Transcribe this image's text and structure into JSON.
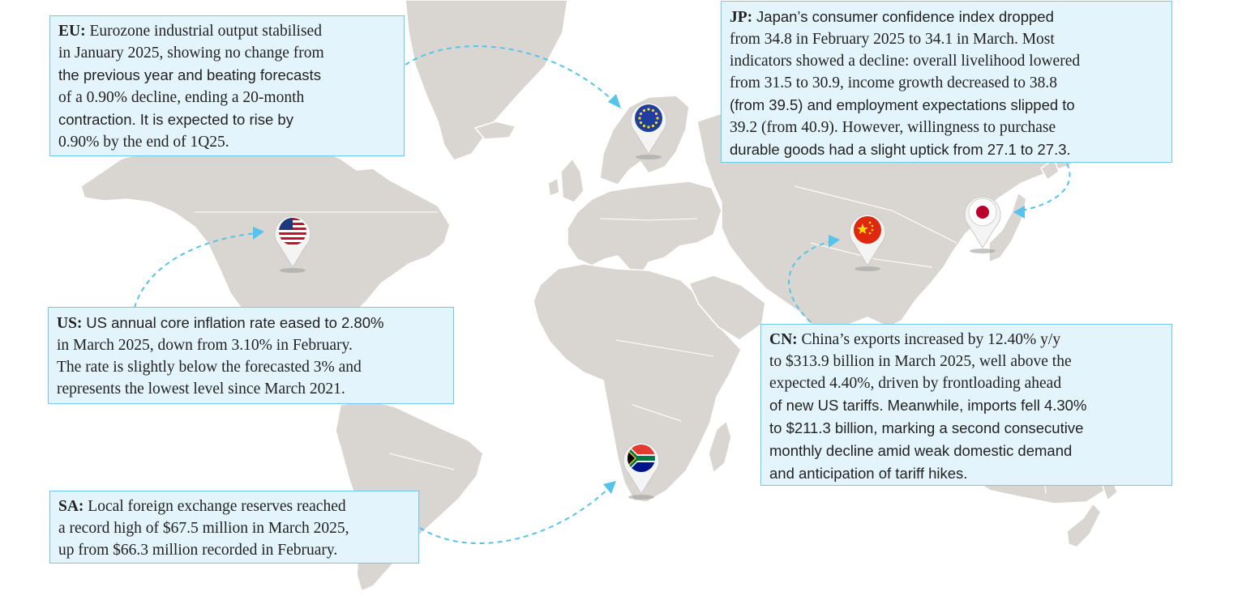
{
  "colors": {
    "land": "#d9d6d1",
    "callout_fill": "#e4f4fc",
    "callout_border": "#6ccbf0",
    "arrow": "#56c3ec"
  },
  "markers": [
    {
      "id": "eu",
      "icon": "eu-flag-icon"
    },
    {
      "id": "us",
      "icon": "us-flag-icon"
    },
    {
      "id": "cn",
      "icon": "china-flag-icon"
    },
    {
      "id": "jp",
      "icon": "japan-flag-icon"
    },
    {
      "id": "sa",
      "icon": "south-africa-flag-icon"
    }
  ],
  "callouts": {
    "eu": {
      "code": "EU:",
      "lines": [
        "Eurozone industrial output stabilised",
        "in January 2025, showing no change from",
        "the previous year and beating forecasts",
        "of a 0.90% decline, ending a 20-month",
        "contraction. It is expected to rise by",
        "0.90% by the end of 1Q25."
      ]
    },
    "jp": {
      "code": "JP:",
      "lines": [
        "Japan’s consumer confidence index dropped",
        "from 34.8 in February 2025 to 34.1 in March. Most",
        "indicators showed a decline: overall livelihood lowered",
        "from 31.5 to 30.9, income growth decreased to 38.8",
        "(from 39.5) and employment expectations slipped to",
        "39.2 (from 40.9). However, willingness to purchase",
        "durable goods had a slight uptick from 27.1 to 27.3."
      ]
    },
    "us": {
      "code": "US:",
      "lines": [
        "US annual core inflation rate eased to 2.80%",
        "in March 2025, down from 3.10% in February.",
        "The rate is slightly below the forecasted 3% and",
        "represents the lowest level since March 2021."
      ]
    },
    "cn": {
      "code": "CN:",
      "lines": [
        "China’s exports increased by 12.40% y/y",
        "to $313.9 billion in March 2025, well above the",
        "expected 4.40%, driven by frontloading ahead",
        "of new US tariffs. Meanwhile, imports fell 4.30%",
        "to $211.3 billion, marking a second consecutive",
        "monthly decline amid weak domestic demand",
        "and anticipation of tariff hikes."
      ]
    },
    "sa": {
      "code": "SA:",
      "lines": [
        "Local foreign exchange reserves reached",
        "a record high of $67.5 million in March 2025,",
        "up from $66.3 million recorded in February."
      ]
    }
  }
}
